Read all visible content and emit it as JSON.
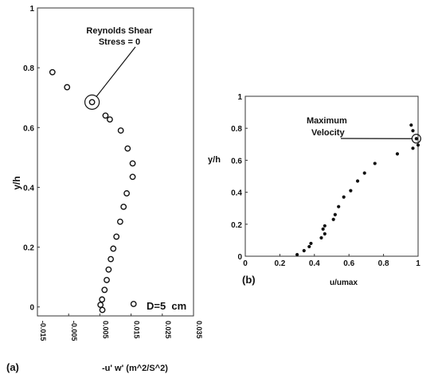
{
  "chart_data": [
    {
      "id": "a",
      "type": "scatter",
      "panel_label": "(a)",
      "xlabel": "-u' w' (m^2/S^2)",
      "ylabel": "y/h",
      "xlim": [
        -0.015,
        0.035
      ],
      "ylim": [
        -0.03,
        1.0
      ],
      "xticks": [
        -0.015,
        -0.005,
        0.005,
        0.015,
        0.025,
        0.035
      ],
      "xtick_labels": [
        "-0.015",
        "-0.005",
        "0.005",
        "0.015",
        "0.025",
        "0.035"
      ],
      "yticks": [
        0,
        0.2,
        0.4,
        0.6,
        0.8,
        1
      ],
      "ytick_labels": [
        "0",
        "0.2",
        "0.4",
        "0.6",
        "0.8",
        "1"
      ],
      "legend": "D=5  cm",
      "legend_position": "bottom-right",
      "grid": false,
      "marker": "open-circle",
      "annotation": {
        "text_lines": [
          "Reynolds Shear",
          "Stress = 0"
        ],
        "point": {
          "x": 0.0025,
          "y": 0.685
        }
      },
      "points": [
        {
          "x": -0.0102,
          "y": 0.785
        },
        {
          "x": -0.0055,
          "y": 0.735
        },
        {
          "x": 0.0025,
          "y": 0.685
        },
        {
          "x": 0.0068,
          "y": 0.64
        },
        {
          "x": 0.0082,
          "y": 0.627
        },
        {
          "x": 0.0117,
          "y": 0.59
        },
        {
          "x": 0.0139,
          "y": 0.53
        },
        {
          "x": 0.0155,
          "y": 0.48
        },
        {
          "x": 0.0155,
          "y": 0.435
        },
        {
          "x": 0.0136,
          "y": 0.38
        },
        {
          "x": 0.0126,
          "y": 0.335
        },
        {
          "x": 0.0115,
          "y": 0.285
        },
        {
          "x": 0.0103,
          "y": 0.235
        },
        {
          "x": 0.0093,
          "y": 0.195
        },
        {
          "x": 0.0085,
          "y": 0.16
        },
        {
          "x": 0.0078,
          "y": 0.125
        },
        {
          "x": 0.0072,
          "y": 0.09
        },
        {
          "x": 0.0065,
          "y": 0.057
        },
        {
          "x": 0.0057,
          "y": 0.025
        },
        {
          "x": 0.0052,
          "y": 0.007
        },
        {
          "x": 0.0058,
          "y": -0.01
        },
        {
          "x": 0.0158,
          "y": 0.01
        }
      ]
    },
    {
      "id": "b",
      "type": "scatter",
      "panel_label": "(b)",
      "xlabel": "u/umax",
      "ylabel": "y/h",
      "xlim": [
        0,
        1
      ],
      "ylim": [
        0,
        1
      ],
      "xticks": [
        0,
        0.2,
        0.4,
        0.6,
        0.8,
        1
      ],
      "xtick_labels": [
        "0",
        "0.2",
        "0.4",
        "0.6",
        "0.8",
        "1"
      ],
      "yticks": [
        0,
        0.2,
        0.4,
        0.6,
        0.8,
        1
      ],
      "ytick_labels": [
        "0",
        "0.2",
        "0.4",
        "0.6",
        "0.8",
        "1"
      ],
      "grid": false,
      "marker": "filled-dot",
      "annotation": {
        "text_lines": [
          "Maximum",
          "Velocity"
        ],
        "point": {
          "x": 0.99,
          "y": 0.735
        }
      },
      "points": [
        {
          "x": 0.3,
          "y": 0.01
        },
        {
          "x": 0.34,
          "y": 0.035
        },
        {
          "x": 0.37,
          "y": 0.06
        },
        {
          "x": 0.38,
          "y": 0.08
        },
        {
          "x": 0.44,
          "y": 0.115
        },
        {
          "x": 0.46,
          "y": 0.14
        },
        {
          "x": 0.45,
          "y": 0.17
        },
        {
          "x": 0.46,
          "y": 0.19
        },
        {
          "x": 0.51,
          "y": 0.23
        },
        {
          "x": 0.52,
          "y": 0.26
        },
        {
          "x": 0.54,
          "y": 0.31
        },
        {
          "x": 0.57,
          "y": 0.37
        },
        {
          "x": 0.61,
          "y": 0.41
        },
        {
          "x": 0.65,
          "y": 0.47
        },
        {
          "x": 0.69,
          "y": 0.52
        },
        {
          "x": 0.75,
          "y": 0.58
        },
        {
          "x": 0.88,
          "y": 0.64
        },
        {
          "x": 0.97,
          "y": 0.675
        },
        {
          "x": 1.0,
          "y": 0.695
        },
        {
          "x": 0.99,
          "y": 0.735
        },
        {
          "x": 0.97,
          "y": 0.785
        },
        {
          "x": 0.96,
          "y": 0.82
        }
      ]
    }
  ]
}
